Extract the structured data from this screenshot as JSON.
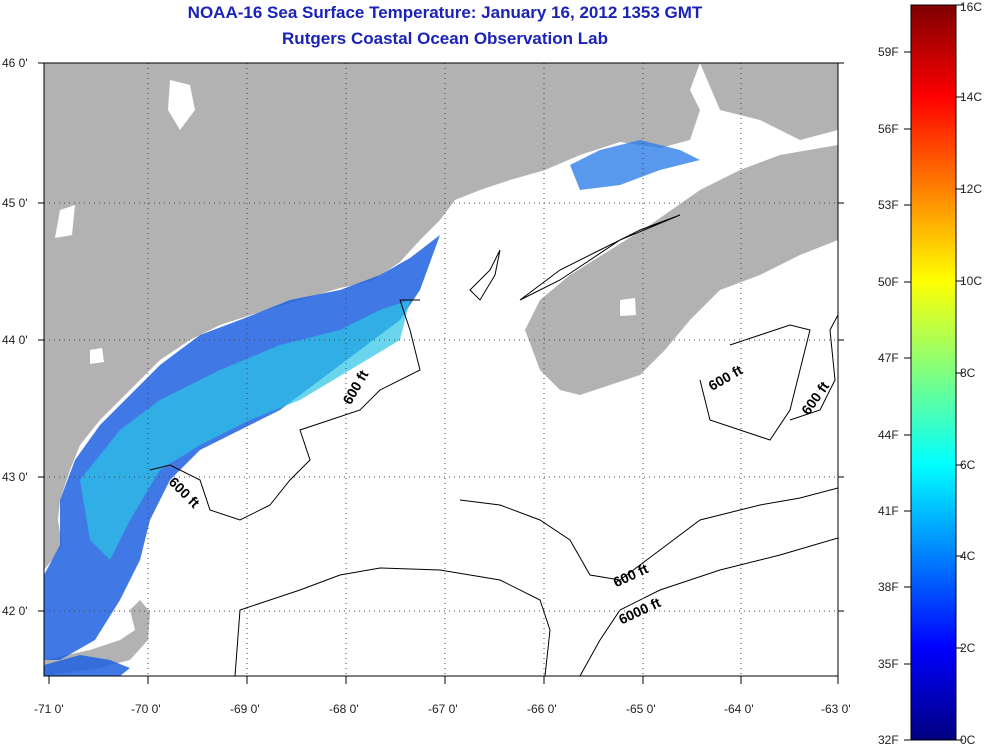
{
  "title": {
    "line1": "NOAA-16 Sea Surface Temperature:  January 16, 2012 1353 GMT",
    "line2": "Rutgers Coastal Ocean Observation Lab"
  },
  "map": {
    "lat_labels": [
      "46 0'",
      "45 0'",
      "44 0'",
      "43 0'",
      "42 0'"
    ],
    "lon_labels": [
      "-71 0'",
      "-70 0'",
      "-69 0'",
      "-68 0'",
      "-67 0'",
      "-66 0'",
      "-65 0'",
      "-64 0'",
      "-63 0'"
    ],
    "contour_labels": [
      "600 ft",
      "600 ft",
      "600 ft",
      "600 ft",
      "6000 ft"
    ],
    "colors": {
      "land": "#b2b2b2",
      "ocean_no_data": "#ffffff",
      "title": "#1a22b8"
    }
  },
  "colorbar": {
    "celsius_labels": [
      "16C",
      "14C",
      "12C",
      "10C",
      "8C",
      "6C",
      "4C",
      "2C",
      "0C"
    ],
    "fahrenheit_labels": [
      "59F",
      "56F",
      "53F",
      "50F",
      "47F",
      "44F",
      "41F",
      "38F",
      "35F",
      "32F"
    ],
    "scale": [
      "#7f0000",
      "#ff0000",
      "#ff8000",
      "#ffff00",
      "#80ff80",
      "#00ffff",
      "#0080ff",
      "#0000ff",
      "#00007f"
    ]
  }
}
